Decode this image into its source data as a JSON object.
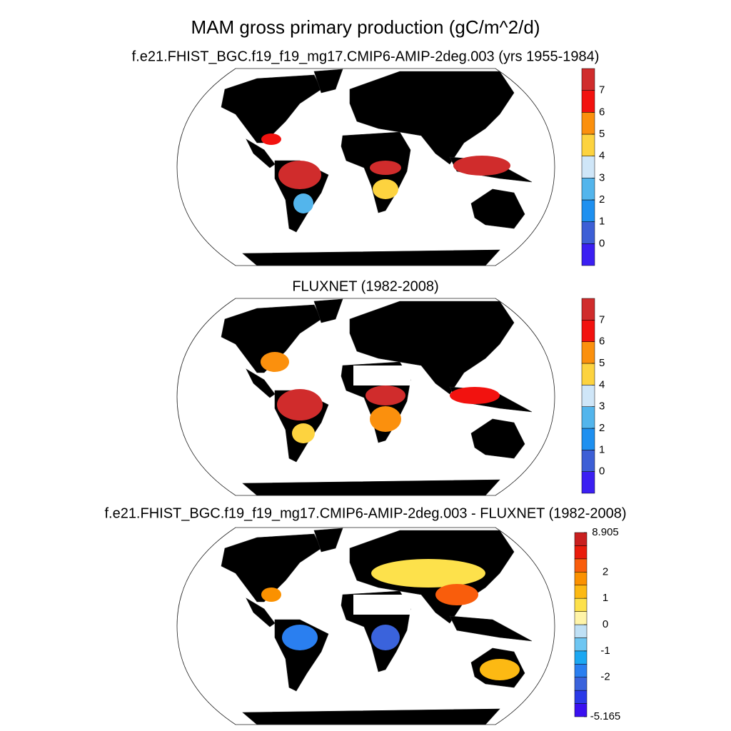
{
  "title": "MAM gross primary production (gC/m^2/d)",
  "panels": [
    {
      "title": "f.e21.FHIST_BGC.f19_f19_mg17.CMIP6-AMIP-2deg.003 (yrs 1955-1984)",
      "colorbar": {
        "colors": [
          "#3b1ff2",
          "#3d5fd6",
          "#1e90f0",
          "#53b5ec",
          "#cfe6f8",
          "#fdd33f",
          "#fb900d",
          "#f2120f",
          "#d02c2c"
        ],
        "levels": [
          0,
          1,
          2,
          3,
          4,
          5,
          6,
          7
        ],
        "ticks": [
          0,
          1,
          2,
          3,
          4,
          5,
          6,
          7
        ]
      }
    },
    {
      "title": "FLUXNET (1982-2008)",
      "colorbar": {
        "colors": [
          "#3b1ff2",
          "#3d5fd6",
          "#1e90f0",
          "#53b5ec",
          "#cfe6f8",
          "#fdd33f",
          "#fb900d",
          "#f2120f",
          "#d02c2c"
        ],
        "levels": [
          0,
          1,
          2,
          3,
          4,
          5,
          6,
          7
        ],
        "ticks": [
          0,
          1,
          2,
          3,
          4,
          5,
          6,
          7
        ]
      }
    },
    {
      "title": "f.e21.FHIST_BGC.f19_f19_mg17.CMIP6-AMIP-2deg.003 - FLUXNET (1982-2008)",
      "colorbar": {
        "colors": [
          "#3a10f0",
          "#2a3ae8",
          "#3a63dc",
          "#2a7ff0",
          "#1ca8f2",
          "#6ec6f2",
          "#bfe0f5",
          "#fff4a8",
          "#fde14b",
          "#fcb913",
          "#fb9100",
          "#f95d0c",
          "#e91c0c",
          "#c91f1f"
        ],
        "levels": [
          -5.165,
          -3,
          -2.5,
          -2,
          -1.5,
          -1,
          -0.5,
          0,
          0.5,
          1,
          1.5,
          2,
          2.5,
          3,
          8.905
        ],
        "ticks": [
          -5.165,
          -2,
          -1,
          0,
          1,
          2,
          8.905
        ]
      }
    }
  ]
}
